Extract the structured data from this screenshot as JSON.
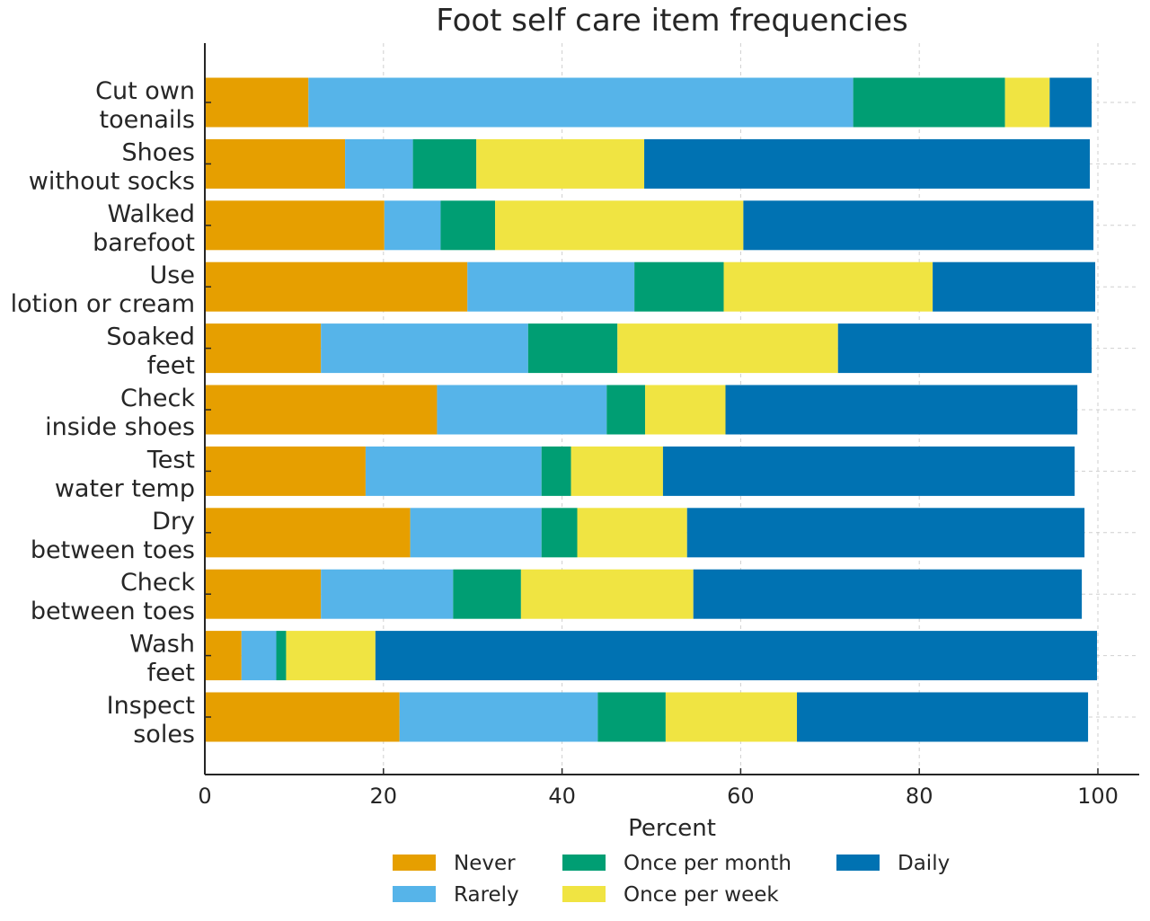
{
  "chart_data": {
    "type": "bar",
    "orientation": "horizontal",
    "stacked": true,
    "title": "Foot self care item frequencies",
    "xlabel": "Percent",
    "ylabel": "",
    "xlim": [
      0,
      100
    ],
    "xticks": [
      "0",
      "20",
      "40",
      "60",
      "80",
      "100"
    ],
    "grid": true,
    "legend_position": "bottom",
    "categories": [
      [
        "Cut own",
        "toenails"
      ],
      [
        "Shoes",
        "without socks"
      ],
      [
        "Walked",
        "barefoot"
      ],
      [
        "Use",
        "lotion or cream"
      ],
      [
        "Soaked",
        "feet"
      ],
      [
        "Check",
        "inside shoes"
      ],
      [
        "Test",
        "water temp"
      ],
      [
        "Dry",
        "between toes"
      ],
      [
        "Check",
        "between toes"
      ],
      [
        "Wash",
        "feet"
      ],
      [
        "Inspect",
        "soles"
      ]
    ],
    "series": [
      {
        "name": "Never",
        "color": "#E69F00",
        "values": [
          11.6,
          15.7,
          20.1,
          29.4,
          13.0,
          26.0,
          18.0,
          23.0,
          13.0,
          4.1,
          21.8
        ]
      },
      {
        "name": "Rarely",
        "color": "#56B4E9",
        "values": [
          61.0,
          7.6,
          6.3,
          18.7,
          23.2,
          19.0,
          19.7,
          14.7,
          14.8,
          3.9,
          22.2
        ]
      },
      {
        "name": "Once per month",
        "color": "#009E73",
        "values": [
          17.0,
          7.1,
          6.1,
          10.0,
          10.0,
          4.3,
          3.3,
          4.0,
          7.6,
          1.1,
          7.6
        ]
      },
      {
        "name": "Once per week",
        "color": "#F0E442",
        "values": [
          5.0,
          18.8,
          27.8,
          23.4,
          24.7,
          9.0,
          10.3,
          12.3,
          19.3,
          10.0,
          14.7
        ]
      },
      {
        "name": "Daily",
        "color": "#0072B2",
        "values": [
          4.7,
          49.9,
          39.2,
          18.2,
          28.4,
          39.4,
          46.1,
          44.5,
          43.5,
          80.8,
          32.6
        ]
      }
    ]
  }
}
